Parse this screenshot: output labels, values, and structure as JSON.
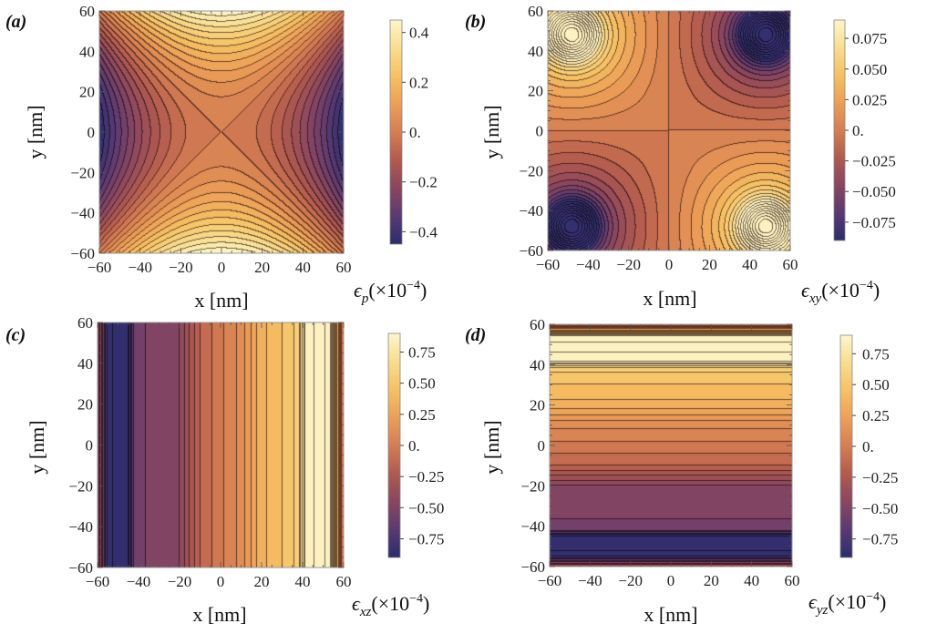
{
  "figure": {
    "axis_unit": "[nm]",
    "palette": [
      "#2b2d6e",
      "#5b3a72",
      "#8a4660",
      "#b25a4e",
      "#d57e52",
      "#ec9f57",
      "#f6c163",
      "#f9dd8e",
      "#fdf6cb"
    ]
  },
  "chart_data": [
    {
      "id": "a",
      "type": "heatmap",
      "panel_label": "(a)",
      "title": "",
      "xlabel": "x [nm]",
      "ylabel": "y [nm]",
      "xlim": [
        -60,
        60
      ],
      "ylim": [
        -60,
        60
      ],
      "xticks": [
        -60,
        -40,
        -20,
        0,
        20,
        40,
        60
      ],
      "yticks": [
        -60,
        -40,
        -20,
        0,
        20,
        40,
        60
      ],
      "xtick_labels": [
        "−60",
        "−40",
        "−20",
        "0",
        "20",
        "40",
        "60"
      ],
      "ytick_labels": [
        "−60",
        "−40",
        "−20",
        "0",
        "20",
        "40",
        "60"
      ],
      "field_model": "0.45*(y^2 - x^2)/3600",
      "contour_levels": 24,
      "colorbar": {
        "label": "ϵp(×10−4)",
        "label_main": "ϵ",
        "label_sub": "p",
        "label_rest": "(×10",
        "label_exp": "−4",
        "label_close": ")",
        "range": [
          -0.45,
          0.45
        ],
        "ticks": [
          0.4,
          0.2,
          0.0,
          -0.2,
          -0.4
        ],
        "tick_labels": [
          "0.4",
          "0.2",
          "0.",
          "−0.2",
          "−0.4"
        ]
      }
    },
    {
      "id": "b",
      "type": "heatmap",
      "panel_label": "(b)",
      "title": "",
      "xlabel": "x [nm]",
      "ylabel": "y [nm]",
      "xlim": [
        -60,
        60
      ],
      "ylim": [
        -60,
        60
      ],
      "xticks": [
        -60,
        -40,
        -20,
        0,
        20,
        40,
        60
      ],
      "yticks": [
        -60,
        -40,
        -20,
        0,
        20,
        40,
        60
      ],
      "xtick_labels": [
        "−60",
        "−40",
        "−20",
        "0",
        "20",
        "40",
        "60"
      ],
      "ytick_labels": [
        "−60",
        "−40",
        "−20",
        "0",
        "20",
        "40",
        "60"
      ],
      "field_model": "quadrant lobes peaking near (±48, ±48); sign = −sign(x·y)",
      "contour_levels": 22,
      "colorbar": {
        "label": "ϵxy(×10−4)",
        "label_main": "ϵ",
        "label_sub": "xy",
        "label_rest": "(×10",
        "label_exp": "−4",
        "label_close": ")",
        "range": [
          -0.09,
          0.09
        ],
        "ticks": [
          0.075,
          0.05,
          0.025,
          0.0,
          -0.025,
          -0.05,
          -0.075
        ],
        "tick_labels": [
          "0.075",
          "0.050",
          "0.025",
          "0.",
          "−0.025",
          "−0.050",
          "−0.075"
        ]
      }
    },
    {
      "id": "c",
      "type": "heatmap",
      "panel_label": "(c)",
      "title": "",
      "xlabel": "x [nm]",
      "ylabel": "y [nm]",
      "xlim": [
        -60,
        60
      ],
      "ylim": [
        -60,
        60
      ],
      "xticks": [
        -60,
        -40,
        -20,
        0,
        20,
        40,
        60
      ],
      "yticks": [
        -60,
        -40,
        -20,
        0,
        20,
        40,
        60
      ],
      "xtick_labels": [
        "−60",
        "−40",
        "−20",
        "0",
        "20",
        "40",
        "60"
      ],
      "ytick_labels": [
        "−60",
        "−40",
        "−20",
        "0",
        "20",
        "40",
        "60"
      ],
      "profile_axis": "x",
      "profile": [
        [
          -60,
          -0.3
        ],
        [
          -55,
          -0.85
        ],
        [
          -50,
          -0.95
        ],
        [
          -45,
          -0.9
        ],
        [
          -42,
          -0.55
        ],
        [
          -20,
          -0.45
        ],
        [
          -10,
          -0.15
        ],
        [
          10,
          0.1
        ],
        [
          20,
          0.35
        ],
        [
          30,
          0.45
        ],
        [
          38,
          0.55
        ],
        [
          42,
          0.95
        ],
        [
          50,
          1.0
        ],
        [
          54,
          0.9
        ],
        [
          57,
          0.3
        ],
        [
          60,
          -0.1
        ]
      ],
      "contour_levels": 24,
      "colorbar": {
        "label": "ϵxz(×10−4)",
        "label_main": "ϵ",
        "label_sub": "xz",
        "label_rest": "(×10",
        "label_exp": "−4",
        "label_close": ")",
        "range": [
          -0.9,
          0.9
        ],
        "ticks": [
          0.75,
          0.5,
          0.25,
          0.0,
          -0.25,
          -0.5,
          -0.75
        ],
        "tick_labels": [
          "0.75",
          "0.50",
          "0.25",
          "0.",
          "−0.25",
          "−0.50",
          "−0.75"
        ]
      }
    },
    {
      "id": "d",
      "type": "heatmap",
      "panel_label": "(d)",
      "title": "",
      "xlabel": "x [nm]",
      "ylabel": "y [nm]",
      "xlim": [
        -60,
        60
      ],
      "ylim": [
        -60,
        60
      ],
      "xticks": [
        -60,
        -40,
        -20,
        0,
        20,
        40,
        60
      ],
      "yticks": [
        -60,
        -40,
        -20,
        0,
        20,
        40,
        60
      ],
      "xtick_labels": [
        "−60",
        "−40",
        "−20",
        "0",
        "20",
        "40",
        "60"
      ],
      "ytick_labels": [
        "−60",
        "−40",
        "−20",
        "0",
        "20",
        "40",
        "60"
      ],
      "profile_axis": "y",
      "profile": [
        [
          -60,
          -0.3
        ],
        [
          -55,
          -0.85
        ],
        [
          -50,
          -0.95
        ],
        [
          -45,
          -0.9
        ],
        [
          -42,
          -0.55
        ],
        [
          -20,
          -0.45
        ],
        [
          -10,
          -0.15
        ],
        [
          10,
          0.1
        ],
        [
          20,
          0.35
        ],
        [
          30,
          0.45
        ],
        [
          38,
          0.55
        ],
        [
          42,
          0.95
        ],
        [
          50,
          1.0
        ],
        [
          54,
          0.9
        ],
        [
          57,
          0.3
        ],
        [
          60,
          -0.1
        ]
      ],
      "contour_levels": 24,
      "colorbar": {
        "label": "ϵyz(×10−4)",
        "label_main": "ϵ",
        "label_sub": "yz",
        "label_rest": "(×10",
        "label_exp": "−4",
        "label_close": ")",
        "range": [
          -0.9,
          0.9
        ],
        "ticks": [
          0.75,
          0.5,
          0.25,
          0.0,
          -0.25,
          -0.5,
          -0.75
        ],
        "tick_labels": [
          "0.75",
          "0.50",
          "0.25",
          "0.",
          "−0.25",
          "−0.50",
          "−0.75"
        ]
      }
    }
  ]
}
